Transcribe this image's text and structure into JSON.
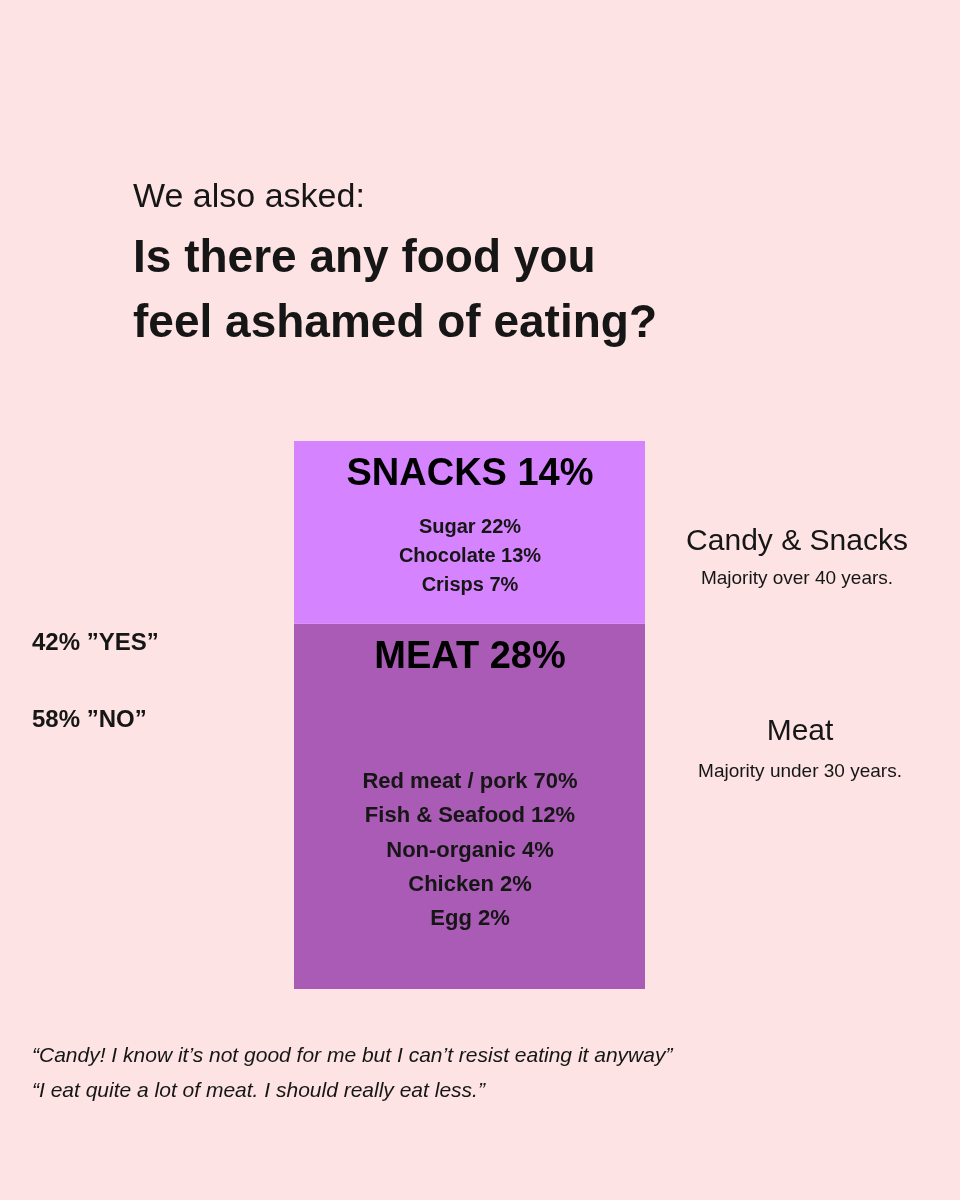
{
  "chart_data": {
    "type": "bar",
    "stacked": true,
    "subtitle": "We also asked:",
    "title": "Is there any food you feel ashamed of eating?",
    "categories": [
      null
    ],
    "series": [
      {
        "color": "#aa5bb5",
        "values": [
          28
        ],
        "value_labels": [
          "MEAT 28%"
        ]
      },
      {
        "color": "#d683ff",
        "values": [
          14
        ],
        "value_labels": [
          "SNACKS 14%"
        ]
      }
    ],
    "tick_labels": false,
    "annotations": [
      "42% ”YES”",
      "58% ”NO”",
      "Sugar 22%",
      "Chocolate 13%",
      "Crisps 7%",
      "Red meat / pork 70%",
      "Fish & Seafood 12%",
      "Non-organic 4%",
      "Chicken 2%",
      "Egg 2%",
      "Candy & Snacks",
      "Majority over 40 years.",
      "Meat",
      "Majority under 30 years.",
      "“Candy! I know it’s not good for me but I can’t resist eating it anyway”",
      "“I eat quite a lot of meat. I should really eat less.”"
    ]
  }
}
